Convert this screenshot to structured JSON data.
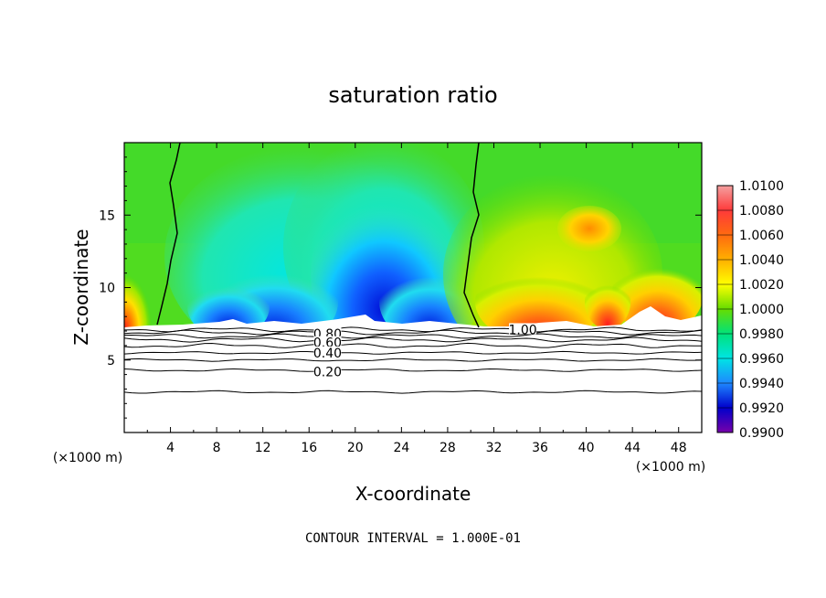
{
  "chart_data": {
    "type": "heatmap",
    "title": "saturation ratio",
    "xlabel": "X-coordinate",
    "ylabel": "Z-coordinate",
    "x_unit": "(×1000 m)",
    "y_unit": "(×1000 m)",
    "xlim": [
      0,
      50
    ],
    "ylim": [
      0,
      20
    ],
    "x_ticks": [
      4,
      8,
      12,
      16,
      20,
      24,
      28,
      32,
      36,
      40,
      44,
      48
    ],
    "y_ticks": [
      5,
      10,
      15
    ],
    "footer": "CONTOUR INTERVAL = 1.000E-01",
    "colorbar": {
      "ticks": [
        "1.0100",
        "1.0080",
        "1.0060",
        "1.0040",
        "1.0020",
        "1.0000",
        "0.9980",
        "0.9960",
        "0.9940",
        "0.9920",
        "0.9900"
      ],
      "range": [
        0.99,
        1.01
      ]
    },
    "contour_labels": [
      {
        "text": "1.00",
        "x": 34.5,
        "y": 7.1
      },
      {
        "text": "0.80",
        "x": 17.6,
        "y": 6.8
      },
      {
        "text": "0.60",
        "x": 17.6,
        "y": 6.2
      },
      {
        "text": "0.40",
        "x": 17.6,
        "y": 5.5
      },
      {
        "text": "0.20",
        "x": 17.6,
        "y": 4.2
      }
    ],
    "contour_lines_below_cloud_z": [
      7.1,
      6.9,
      6.65,
      6.4,
      6.0,
      5.5,
      5.0,
      4.3,
      2.8
    ],
    "saturation_contour_1_00": {
      "left_boundary_x_at_top": 5,
      "right_boundary_x_at_top": 31,
      "description_values": [
        4.5,
        30.5
      ]
    }
  }
}
